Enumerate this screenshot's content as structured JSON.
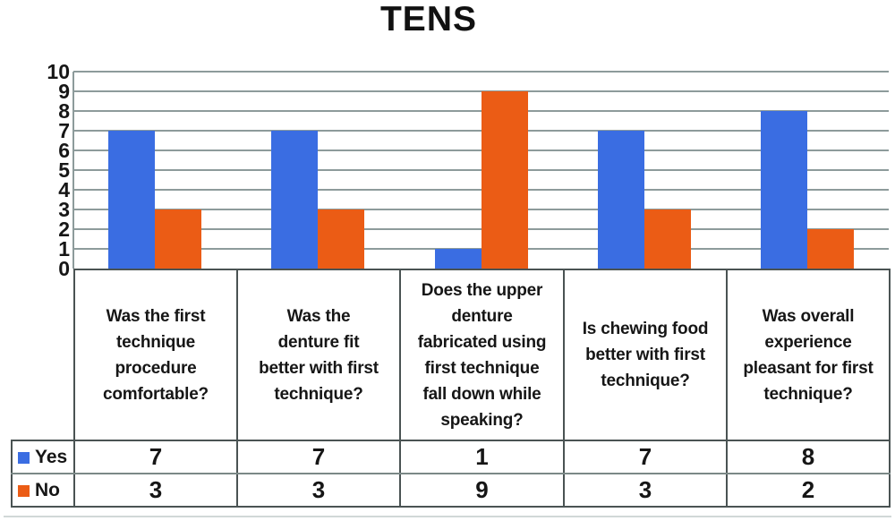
{
  "title": "TENS",
  "colors": {
    "yes_blue": "#3A6DE2",
    "no_orange": "#EB5C15",
    "gridline": "#8D9B9B",
    "table_border": "#4A5353",
    "row_divider": "#7B8887",
    "text": "#161616"
  },
  "chart_data": {
    "type": "bar",
    "title": "TENS",
    "categories": [
      [
        "Was the first",
        "technique",
        "procedure",
        "comfortable?"
      ],
      [
        "Was the",
        "denture fit",
        "better with first",
        "technique?"
      ],
      [
        "Does the upper",
        "denture",
        "fabricated using",
        "first technique",
        "fall down while",
        "speaking?"
      ],
      [
        "Is chewing food",
        "better with first",
        "technique?"
      ],
      [
        "Was overall",
        "experience",
        "pleasant for first",
        "technique?"
      ]
    ],
    "series": [
      {
        "name": "Yes",
        "color": "#3A6DE2",
        "values": [
          7,
          7,
          1,
          7,
          8
        ]
      },
      {
        "name": "No",
        "color": "#EB5C15",
        "values": [
          3,
          3,
          9,
          3,
          2
        ]
      }
    ],
    "xlabel": "",
    "ylabel": "",
    "ylim": [
      0,
      10
    ],
    "ytick_step": 1,
    "grid": true,
    "legend_position": "table-rows-left",
    "data_table_shown": true
  }
}
